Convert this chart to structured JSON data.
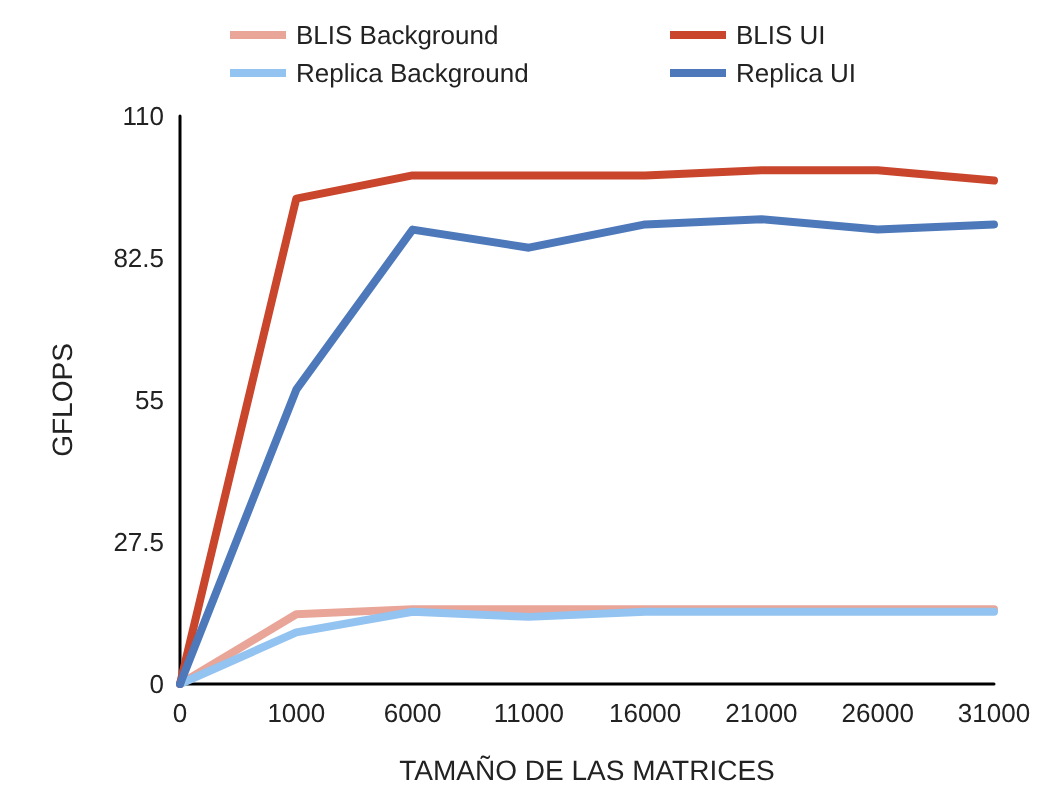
{
  "chart_data": {
    "type": "line",
    "xlabel": "TAMAÑO DE LAS MATRICES",
    "ylabel": "GFLOPS",
    "categories": [
      "0",
      "1000",
      "6000",
      "11000",
      "16000",
      "21000",
      "26000",
      "31000"
    ],
    "series": [
      {
        "name": "BLIS Background",
        "color": "#e8a598",
        "values": [
          0,
          13.5,
          14.5,
          14.5,
          14.5,
          14.5,
          14.5,
          14.5
        ]
      },
      {
        "name": "Replica Background",
        "color": "#93c3f0",
        "values": [
          0,
          10,
          14,
          13,
          14,
          14,
          14,
          14
        ]
      },
      {
        "name": "BLIS UI",
        "color": "#c9452c",
        "values": [
          0,
          94,
          98.5,
          98.5,
          98.5,
          99.5,
          99.5,
          97.5
        ]
      },
      {
        "name": "Replica UI",
        "color": "#4d79bb",
        "values": [
          0,
          57,
          88,
          84.5,
          89,
          90,
          88,
          89
        ]
      }
    ],
    "ylim": [
      0,
      110
    ],
    "yticks": [
      0,
      27.5,
      55,
      82.5,
      110
    ],
    "grid": false,
    "legend": "top",
    "marker": "none",
    "line_style": "solid"
  }
}
